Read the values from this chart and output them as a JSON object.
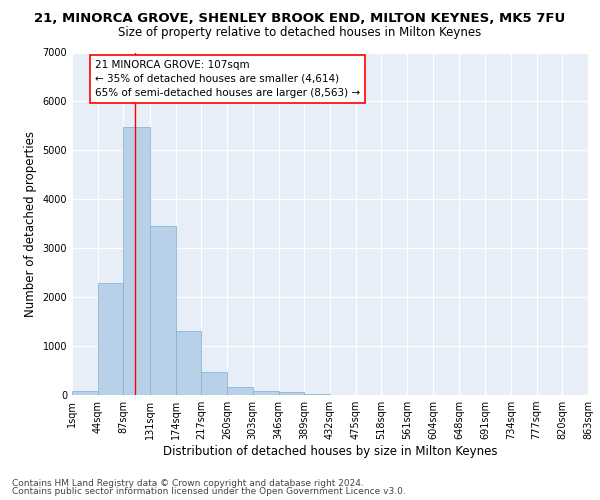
{
  "title": "21, MINORCA GROVE, SHENLEY BROOK END, MILTON KEYNES, MK5 7FU",
  "subtitle": "Size of property relative to detached houses in Milton Keynes",
  "xlabel": "Distribution of detached houses by size in Milton Keynes",
  "ylabel": "Number of detached properties",
  "bar_color": "#b8d0e8",
  "bar_edge_color": "#7aafd4",
  "background_color": "#e8eef8",
  "grid_color": "#ffffff",
  "bin_labels": [
    "1sqm",
    "44sqm",
    "87sqm",
    "131sqm",
    "174sqm",
    "217sqm",
    "260sqm",
    "303sqm",
    "346sqm",
    "389sqm",
    "432sqm",
    "475sqm",
    "518sqm",
    "561sqm",
    "604sqm",
    "648sqm",
    "691sqm",
    "734sqm",
    "777sqm",
    "820sqm",
    "863sqm"
  ],
  "bar_values": [
    75,
    2280,
    5480,
    3450,
    1310,
    460,
    155,
    80,
    55,
    15,
    5,
    0,
    0,
    0,
    0,
    0,
    0,
    0,
    0,
    0
  ],
  "bin_edges": [
    1,
    44,
    87,
    131,
    174,
    217,
    260,
    303,
    346,
    389,
    432,
    475,
    518,
    561,
    604,
    648,
    691,
    734,
    777,
    820,
    863
  ],
  "red_line_x": 107,
  "ylim": [
    0,
    7000
  ],
  "yticks": [
    0,
    1000,
    2000,
    3000,
    4000,
    5000,
    6000,
    7000
  ],
  "annotation_title": "21 MINORCA GROVE: 107sqm",
  "annotation_line1": "← 35% of detached houses are smaller (4,614)",
  "annotation_line2": "65% of semi-detached houses are larger (8,563) →",
  "footer_line1": "Contains HM Land Registry data © Crown copyright and database right 2024.",
  "footer_line2": "Contains public sector information licensed under the Open Government Licence v3.0.",
  "title_fontsize": 9.5,
  "subtitle_fontsize": 8.5,
  "xlabel_fontsize": 8.5,
  "ylabel_fontsize": 8.5,
  "tick_fontsize": 7,
  "annotation_fontsize": 7.5,
  "footer_fontsize": 6.5
}
